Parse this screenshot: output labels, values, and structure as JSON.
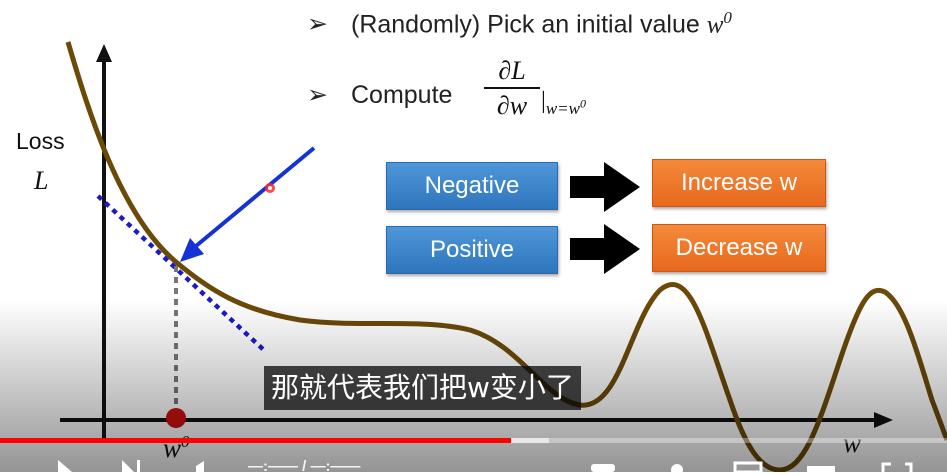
{
  "slide": {
    "step1_prefix": "(Randomly) Pick an initial value ",
    "step1_var": "w",
    "step1_sup": "0",
    "step2_label": "Compute",
    "frac_num": "∂L",
    "frac_den": "∂w",
    "eval_sub": "w=w",
    "eval_sup": "0",
    "bullet_glyph": "➢",
    "negative_label": "Negative",
    "increase_label": "Increase w",
    "positive_label": "Positive",
    "decrease_label": "Decrease w"
  },
  "plot": {
    "y_title": "Loss",
    "y_var": "L",
    "x_var": "w",
    "w0_var": "w",
    "w0_sup": "0"
  },
  "colors": {
    "curve": "#6b4a08",
    "tangent": "#1a1ac8",
    "arrow": "#1432d6",
    "point": "#d01010"
  },
  "player": {
    "subtitle": "那就代表我们把w变小了",
    "progress_fraction": 0.54,
    "buffer_fraction": 0.58,
    "time_text": "—:—— / —:——"
  }
}
